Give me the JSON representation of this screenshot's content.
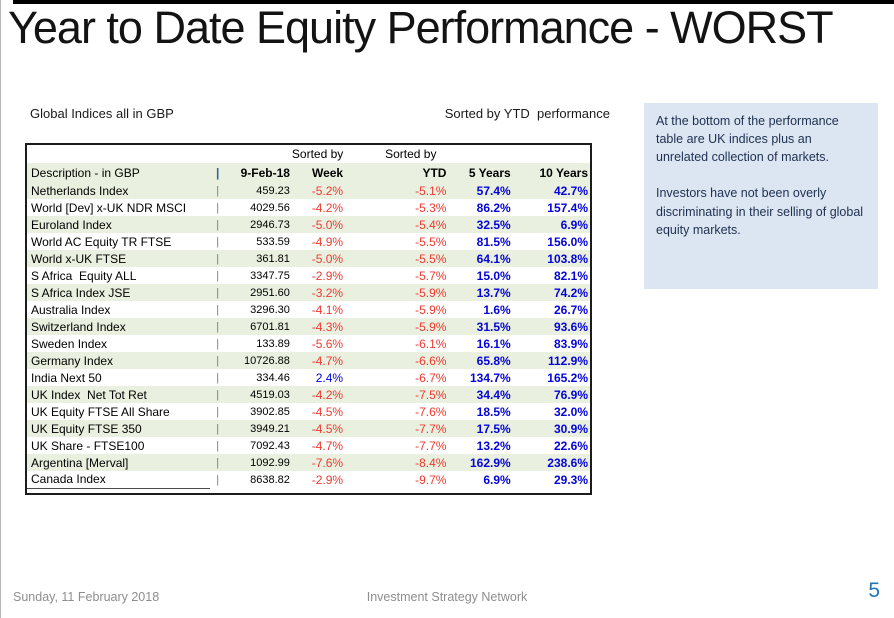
{
  "slide": {
    "title": "Year to Date Equity Performance - WORST",
    "caption_left": "Global Indices all in GBP",
    "caption_right": "Sorted by YTD  performance"
  },
  "table": {
    "sorted_by_label": "Sorted by",
    "pipe": "|",
    "columns": {
      "description": "Description - in GBP",
      "separator": "|",
      "date": "9-Feb-18",
      "week": "Week",
      "ytd": "YTD",
      "y5": "5 Years",
      "y10": "10 Years"
    },
    "rows": [
      [
        "Netherlands Index",
        "459.23",
        "-5.2%",
        "-5.1%",
        "57.4%",
        "42.7%"
      ],
      [
        "World [Dev] x-UK NDR MSCI",
        "4029.56",
        "-4.2%",
        "-5.3%",
        "86.2%",
        "157.4%"
      ],
      [
        "Euroland Index",
        "2946.73",
        "-5.0%",
        "-5.4%",
        "32.5%",
        "6.9%"
      ],
      [
        "World AC Equity TR FTSE",
        "533.59",
        "-4.9%",
        "-5.5%",
        "81.5%",
        "156.0%"
      ],
      [
        "World x-UK FTSE",
        "361.81",
        "-5.0%",
        "-5.5%",
        "64.1%",
        "103.8%"
      ],
      [
        "S Africa  Equity ALL",
        "3347.75",
        "-2.9%",
        "-5.7%",
        "15.0%",
        "82.1%"
      ],
      [
        "S Africa Index JSE",
        "2951.60",
        "-3.2%",
        "-5.9%",
        "13.7%",
        "74.2%"
      ],
      [
        "Australia Index",
        "3296.30",
        "-4.1%",
        "-5.9%",
        "1.6%",
        "26.7%"
      ],
      [
        "Switzerland Index",
        "6701.81",
        "-4.3%",
        "-5.9%",
        "31.5%",
        "93.6%"
      ],
      [
        "Sweden Index",
        "133.89",
        "-5.6%",
        "-6.1%",
        "16.1%",
        "83.9%"
      ],
      [
        "Germany Index",
        "10726.88",
        "-4.7%",
        "-6.6%",
        "65.8%",
        "112.9%"
      ],
      [
        "India Next 50",
        "334.46",
        "2.4%",
        "-6.7%",
        "134.7%",
        "165.2%"
      ],
      [
        "UK Index  Net Tot Ret",
        "4519.03",
        "-4.2%",
        "-7.5%",
        "34.4%",
        "76.9%"
      ],
      [
        "UK Equity FTSE All Share",
        "3902.85",
        "-4.5%",
        "-7.6%",
        "18.5%",
        "32.0%"
      ],
      [
        "UK Equity FTSE 350",
        "3949.21",
        "-4.5%",
        "-7.7%",
        "17.5%",
        "30.9%"
      ],
      [
        "UK Share - FTSE100",
        "7092.43",
        "-4.7%",
        "-7.7%",
        "13.2%",
        "22.6%"
      ],
      [
        "Argentina [Merval]",
        "1092.99",
        "-7.6%",
        "-8.4%",
        "162.9%",
        "238.6%"
      ],
      [
        "Canada Index",
        "8638.82",
        "-2.9%",
        "-9.7%",
        "6.9%",
        "29.3%"
      ]
    ]
  },
  "note": {
    "para1": "At the bottom of the performance table are UK indices plus an unrelated collection of markets.",
    "para2": "Investors have not been overly discriminating in their selling of global equity markets."
  },
  "footer": {
    "date": "Sunday, 11 February 2018",
    "center": "Investment Strategy Network",
    "page": "5"
  },
  "colors": {
    "negative_text": "#ee3a31",
    "positive_text": "#0404d8",
    "row_green": "#e9f0df",
    "note_background": "#dce6f2",
    "page_number_blue": "#1e74b8"
  }
}
